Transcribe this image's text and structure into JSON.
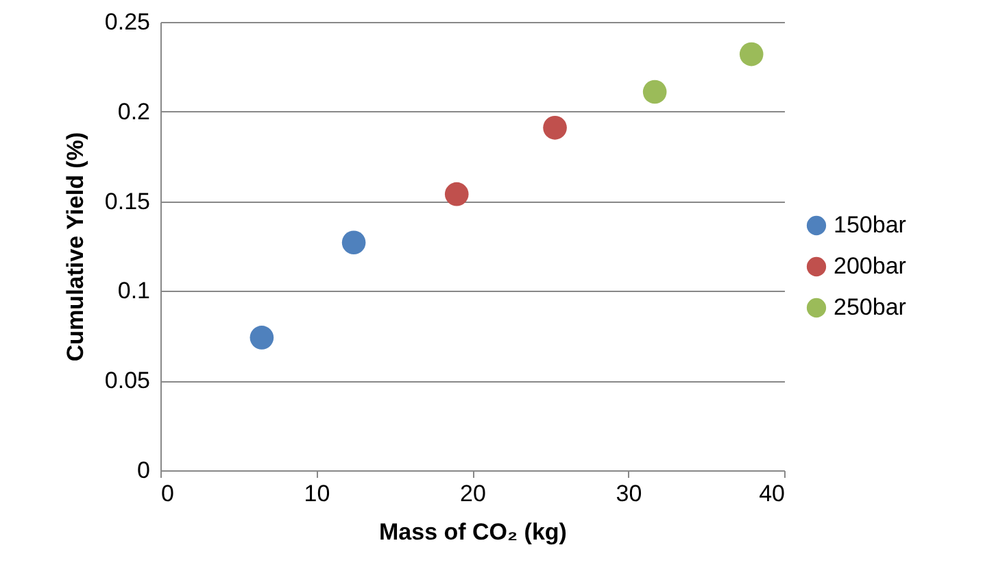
{
  "chart_data": {
    "type": "scatter",
    "xlabel": "Mass of CO₂ (kg)",
    "ylabel": "Cumulative Yield (%)",
    "xlim": [
      0,
      40
    ],
    "xticks": [
      0,
      10,
      20,
      30,
      40
    ],
    "ylim": [
      0,
      0.25
    ],
    "yticks": [
      0,
      0.05,
      0.1,
      0.15,
      0.2,
      0.25
    ],
    "grid": "y",
    "legend": "right",
    "marker": "circle",
    "series": [
      {
        "name": "150bar",
        "color": "#4f81bd",
        "x": [
          6.5,
          12.4
        ],
        "values": [
          0.074,
          0.127
        ]
      },
      {
        "name": "200bar",
        "color": "#c0504d",
        "x": [
          19.0,
          25.3
        ],
        "values": [
          0.154,
          0.191
        ]
      },
      {
        "name": "250bar",
        "color": "#9bbb59",
        "x": [
          31.7,
          37.9
        ],
        "values": [
          0.211,
          0.232
        ]
      }
    ]
  }
}
